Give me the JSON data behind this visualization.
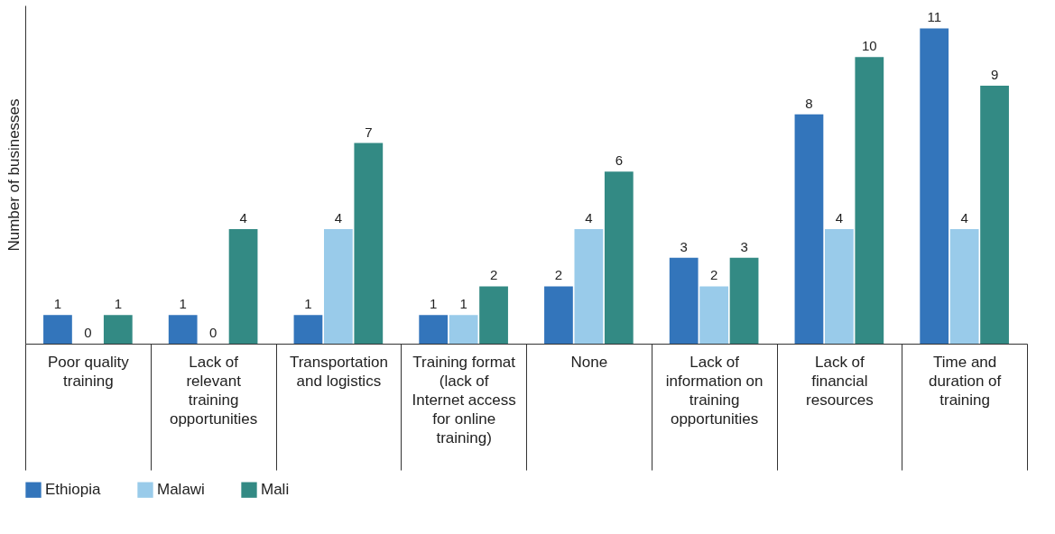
{
  "chart_data": {
    "type": "bar",
    "ylabel": "Number of businesses",
    "categories": [
      "Poor quality training",
      "Lack of relevant training opportunities",
      "Transportation and logistics",
      "Training format (lack of Internet access for online training)",
      "None",
      "Lack of information on training opportunities",
      "Lack of financial resources",
      "Time and duration of training"
    ],
    "series": [
      {
        "name": "Ethiopia",
        "color": "#3375bb",
        "values": [
          1,
          1,
          1,
          1,
          2,
          3,
          8,
          11
        ]
      },
      {
        "name": "Malawi",
        "color": "#99cbea",
        "values": [
          0,
          0,
          4,
          1,
          4,
          2,
          4,
          4
        ]
      },
      {
        "name": "Mali",
        "color": "#338a84",
        "values": [
          1,
          4,
          7,
          2,
          6,
          3,
          10,
          9
        ]
      }
    ],
    "ylim": [
      0,
      11.8
    ],
    "data_labels": true,
    "legend": "bottom left",
    "tick_labels": "x",
    "grid": false
  }
}
